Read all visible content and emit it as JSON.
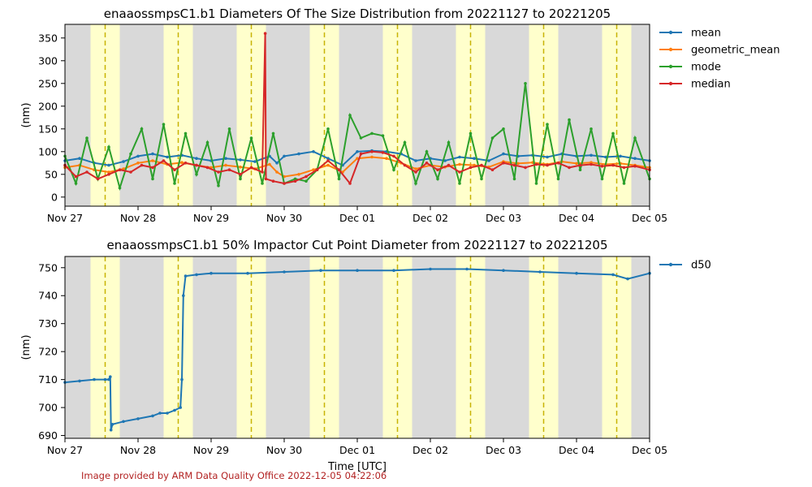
{
  "footer": "Image provided by ARM Data Quality Office 2022-12-05 04:22:06",
  "colors": {
    "night_shade": "#d9d9d9",
    "day_shade": "#ffffcc",
    "noon_line": "#c8b400",
    "mean": "#1f77b4",
    "geometric_mean": "#ff7f0e",
    "mode": "#2ca02c",
    "median": "#d62728",
    "d50": "#1f77b4"
  },
  "chart_data": [
    {
      "type": "line",
      "title": "enaaossmpsC1.b1 Diameters Of The Size Distribution from 20221127 to 20221205",
      "xlabel": "",
      "ylabel": "(nm)",
      "xlim": [
        0,
        8
      ],
      "ylim": [
        -20,
        380
      ],
      "xticks": [
        0,
        1,
        2,
        3,
        4,
        5,
        6,
        7,
        8
      ],
      "xtick_labels": [
        "Nov 27",
        "Nov 28",
        "Nov 29",
        "Nov 30",
        "Dec 01",
        "Dec 02",
        "Dec 03",
        "Dec 04",
        "Dec 05"
      ],
      "yticks": [
        0,
        50,
        100,
        150,
        200,
        250,
        300,
        350
      ],
      "legend_placement": "outside-top-right",
      "day_shading": {
        "day_start_frac": 0.35,
        "day_end_frac": 0.75,
        "noon_frac": 0.55
      },
      "series": [
        {
          "name": "mean",
          "color_key": "mean",
          "x": [
            0,
            0.2,
            0.4,
            0.6,
            0.8,
            1.0,
            1.2,
            1.4,
            1.6,
            1.8,
            2.0,
            2.2,
            2.4,
            2.6,
            2.8,
            2.9,
            3.0,
            3.2,
            3.4,
            3.6,
            3.8,
            4.0,
            4.2,
            4.4,
            4.6,
            4.8,
            5.0,
            5.2,
            5.4,
            5.6,
            5.8,
            6.0,
            6.2,
            6.4,
            6.6,
            6.8,
            7.0,
            7.2,
            7.4,
            7.6,
            7.8,
            8.0
          ],
          "values": [
            80,
            85,
            75,
            70,
            78,
            90,
            95,
            88,
            92,
            85,
            80,
            85,
            82,
            78,
            90,
            75,
            90,
            95,
            100,
            85,
            70,
            100,
            102,
            100,
            95,
            80,
            85,
            80,
            88,
            85,
            80,
            95,
            90,
            92,
            88,
            95,
            90,
            92,
            88,
            90,
            85,
            80
          ]
        },
        {
          "name": "geometric_mean",
          "color_key": "geometric_mean",
          "x": [
            0,
            0.2,
            0.4,
            0.6,
            0.8,
            1.0,
            1.2,
            1.4,
            1.6,
            1.8,
            2.0,
            2.2,
            2.4,
            2.6,
            2.8,
            2.9,
            3.0,
            3.2,
            3.4,
            3.6,
            3.8,
            4.0,
            4.2,
            4.4,
            4.6,
            4.8,
            5.0,
            5.2,
            5.4,
            5.6,
            5.8,
            6.0,
            6.2,
            6.4,
            6.6,
            6.8,
            7.0,
            7.2,
            7.4,
            7.6,
            7.8,
            8.0
          ],
          "values": [
            65,
            70,
            60,
            55,
            62,
            75,
            80,
            72,
            76,
            70,
            65,
            70,
            66,
            62,
            72,
            55,
            45,
            50,
            60,
            70,
            55,
            85,
            88,
            85,
            75,
            62,
            70,
            66,
            72,
            70,
            66,
            78,
            74,
            76,
            72,
            78,
            74,
            76,
            72,
            74,
            70,
            65
          ]
        },
        {
          "name": "mode",
          "color_key": "mode",
          "x": [
            0,
            0.15,
            0.3,
            0.45,
            0.6,
            0.75,
            0.9,
            1.05,
            1.2,
            1.35,
            1.5,
            1.65,
            1.8,
            1.95,
            2.1,
            2.25,
            2.4,
            2.55,
            2.7,
            2.85,
            3.0,
            3.15,
            3.3,
            3.45,
            3.6,
            3.75,
            3.9,
            4.05,
            4.2,
            4.35,
            4.5,
            4.65,
            4.8,
            4.95,
            5.1,
            5.25,
            5.4,
            5.55,
            5.7,
            5.85,
            6.0,
            6.15,
            6.3,
            6.45,
            6.6,
            6.75,
            6.9,
            7.05,
            7.2,
            7.35,
            7.5,
            7.65,
            7.8,
            8.0
          ],
          "values": [
            90,
            30,
            130,
            40,
            110,
            20,
            95,
            150,
            40,
            160,
            30,
            140,
            50,
            120,
            25,
            150,
            40,
            130,
            30,
            140,
            30,
            40,
            35,
            60,
            150,
            40,
            180,
            130,
            140,
            135,
            60,
            120,
            30,
            100,
            40,
            120,
            30,
            140,
            40,
            130,
            150,
            40,
            250,
            30,
            160,
            40,
            170,
            60,
            150,
            40,
            140,
            30,
            130,
            40
          ]
        },
        {
          "name": "median",
          "color_key": "median",
          "x": [
            0,
            0.15,
            0.3,
            0.45,
            0.6,
            0.75,
            0.9,
            1.05,
            1.2,
            1.35,
            1.5,
            1.65,
            1.8,
            1.95,
            2.1,
            2.25,
            2.4,
            2.55,
            2.7,
            2.74,
            2.75,
            2.85,
            3.0,
            3.15,
            3.3,
            3.45,
            3.6,
            3.75,
            3.9,
            4.05,
            4.2,
            4.35,
            4.5,
            4.65,
            4.8,
            4.95,
            5.1,
            5.25,
            5.4,
            5.55,
            5.7,
            5.85,
            6.0,
            6.15,
            6.3,
            6.45,
            6.6,
            6.75,
            6.9,
            7.05,
            7.2,
            7.35,
            7.5,
            7.65,
            7.8,
            8.0
          ],
          "values": [
            70,
            45,
            55,
            40,
            50,
            60,
            55,
            70,
            65,
            80,
            60,
            75,
            70,
            65,
            55,
            60,
            50,
            65,
            55,
            360,
            40,
            35,
            30,
            35,
            45,
            60,
            80,
            60,
            30,
            95,
            100,
            98,
            90,
            70,
            55,
            75,
            60,
            70,
            55,
            65,
            70,
            60,
            75,
            70,
            65,
            72,
            70,
            75,
            65,
            70,
            72,
            68,
            70,
            65,
            68,
            60
          ]
        }
      ]
    },
    {
      "type": "line",
      "title": "enaaossmpsC1.b1 50% Impactor Cut Point Diameter from 20221127 to 20221205",
      "xlabel": "Time [UTC]",
      "ylabel": "(nm)",
      "xlim": [
        0,
        8
      ],
      "ylim": [
        689,
        754
      ],
      "xticks": [
        0,
        1,
        2,
        3,
        4,
        5,
        6,
        7,
        8
      ],
      "xtick_labels": [
        "Nov 27",
        "Nov 28",
        "Nov 29",
        "Nov 30",
        "Dec 01",
        "Dec 02",
        "Dec 03",
        "Dec 04",
        "Dec 05"
      ],
      "yticks": [
        690,
        700,
        710,
        720,
        730,
        740,
        750
      ],
      "legend_placement": "outside-top-right",
      "day_shading": {
        "day_start_frac": 0.35,
        "day_end_frac": 0.75,
        "noon_frac": 0.55
      },
      "series": [
        {
          "name": "d50",
          "color_key": "d50",
          "x": [
            0,
            0.2,
            0.4,
            0.55,
            0.6,
            0.62,
            0.63,
            0.65,
            0.8,
            1.0,
            1.2,
            1.3,
            1.4,
            1.5,
            1.58,
            1.6,
            1.62,
            1.65,
            1.8,
            2.0,
            2.5,
            3.0,
            3.5,
            4.0,
            4.5,
            5.0,
            5.5,
            6.0,
            6.5,
            7.0,
            7.5,
            7.7,
            8.0
          ],
          "values": [
            709,
            709.5,
            710,
            710,
            710,
            711,
            692,
            694,
            695,
            696,
            697,
            698,
            698,
            699,
            700,
            710,
            740,
            747,
            747.5,
            748,
            748,
            748.5,
            749,
            749,
            749,
            749.5,
            749.5,
            749,
            748.5,
            748,
            747.5,
            746,
            748
          ]
        }
      ]
    }
  ]
}
